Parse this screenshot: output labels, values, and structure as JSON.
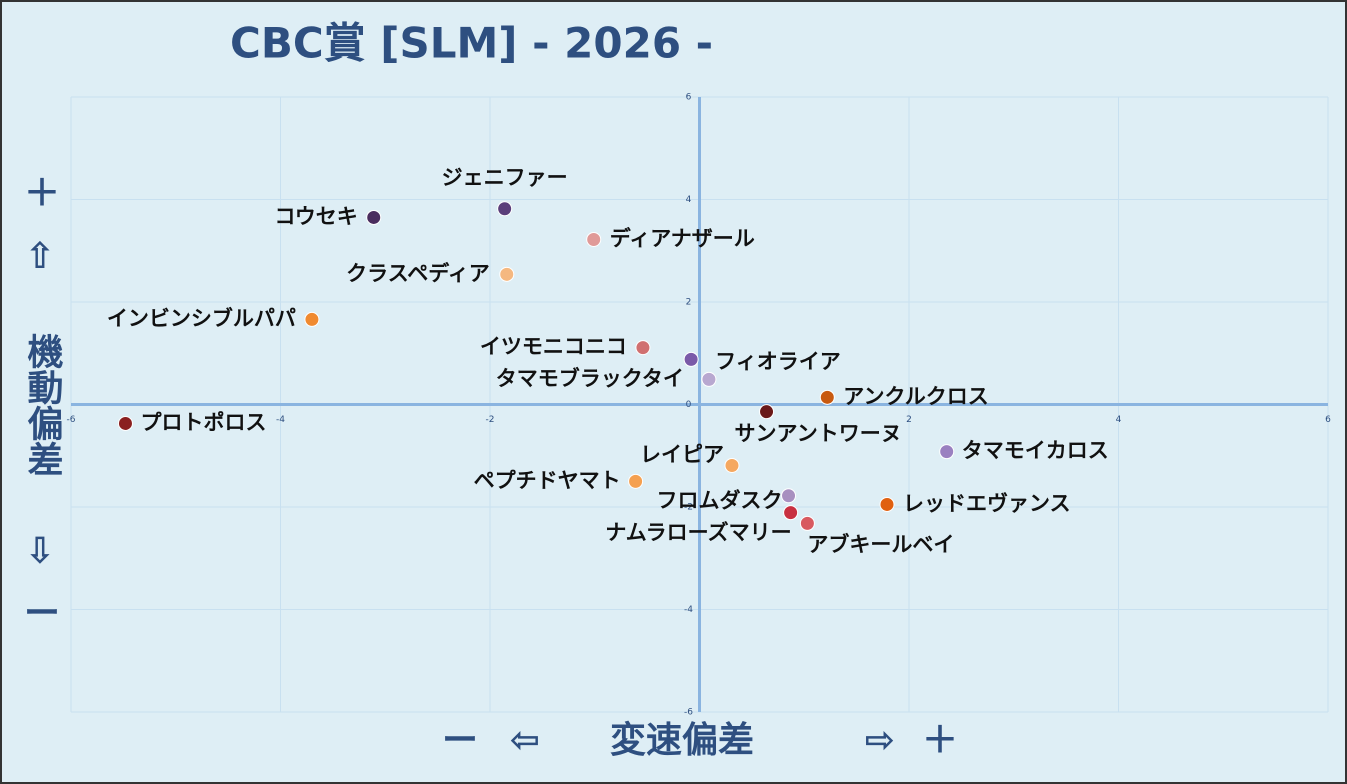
{
  "chart_data": {
    "type": "scatter",
    "title": "CBC賞 [SLM]  - 2026 -",
    "xlabel": "変速偏差",
    "ylabel": "機動偏差",
    "x_markers": [
      "ー",
      "⇦",
      "⇨",
      "＋"
    ],
    "y_markers": [
      "＋",
      "⇧",
      "⇩",
      "ー"
    ],
    "xlim": [
      -6,
      6
    ],
    "ylim": [
      -6,
      6
    ],
    "xticks": [
      -6,
      -4,
      -2,
      0,
      2,
      4,
      6
    ],
    "yticks": [
      -6,
      -4,
      -2,
      0,
      2,
      4,
      6
    ],
    "grid": true,
    "points": [
      {
        "name": "ジェニファー",
        "x": -1.86,
        "y": 3.82,
        "color": "#5a3e7a"
      },
      {
        "name": "コウセキ",
        "x": -3.11,
        "y": 3.65,
        "color": "#4a2d5e"
      },
      {
        "name": "ディアナザール",
        "x": -1.01,
        "y": 3.22,
        "color": "#e09a98"
      },
      {
        "name": "クラスペディア",
        "x": -1.84,
        "y": 2.54,
        "color": "#f5b880"
      },
      {
        "name": "インビンシブルパパ",
        "x": -3.7,
        "y": 1.66,
        "color": "#f08a30"
      },
      {
        "name": "イツモニコニコ",
        "x": -0.54,
        "y": 1.11,
        "color": "#d07070"
      },
      {
        "name": "フィオライア",
        "x": -0.08,
        "y": 0.88,
        "color": "#7a5aa8"
      },
      {
        "name": "タマモブラックタイ",
        "x": 0.09,
        "y": 0.49,
        "color": "#b8a8d0"
      },
      {
        "name": "アンクルクロス",
        "x": 1.22,
        "y": 0.14,
        "color": "#c85a10"
      },
      {
        "name": "プロトポロス",
        "x": -5.48,
        "y": -0.37,
        "color": "#8a2020"
      },
      {
        "name": "サンアントワーヌ",
        "x": 0.64,
        "y": -0.14,
        "color": "#6a1818"
      },
      {
        "name": "タマモイカロス",
        "x": 2.36,
        "y": -0.92,
        "color": "#9a80c0"
      },
      {
        "name": "レイピア",
        "x": 0.31,
        "y": -1.19,
        "color": "#f5a860"
      },
      {
        "name": "ペプチドヤマト",
        "x": -0.61,
        "y": -1.5,
        "color": "#f5a050"
      },
      {
        "name": "フロムダスク",
        "x": 0.85,
        "y": -1.78,
        "color": "#a890c0"
      },
      {
        "name": "レッドエヴァンス",
        "x": 1.79,
        "y": -1.95,
        "color": "#e06010"
      },
      {
        "name": "ナムラローズマリー",
        "x": 0.87,
        "y": -2.11,
        "color": "#c83040"
      },
      {
        "name": "アブキールベイ",
        "x": 1.03,
        "y": -2.32,
        "color": "#d85a60"
      }
    ]
  }
}
